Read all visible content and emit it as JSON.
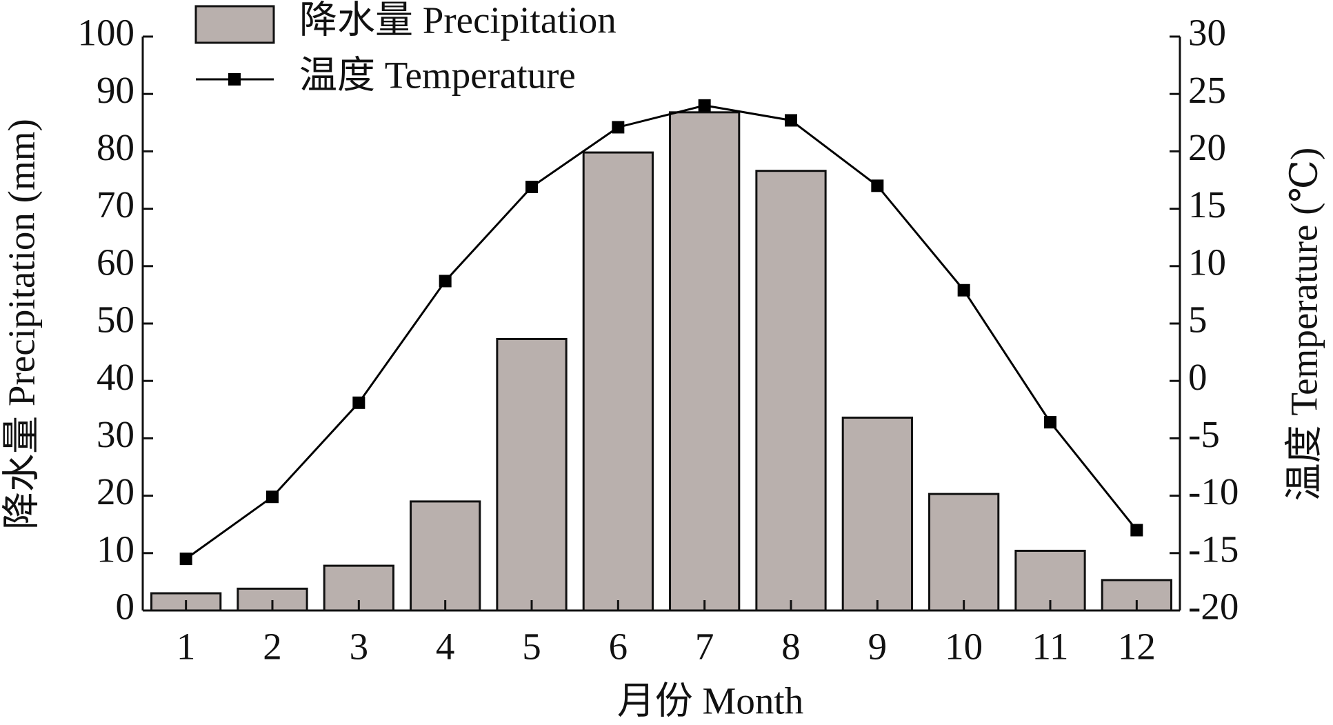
{
  "chart_data": {
    "type": "bar-line",
    "x_label": "月份 Month",
    "y_label": "降水量 Precipitation (mm)",
    "y2_label": "温度 Temperature (℃)",
    "categories": [
      "1",
      "2",
      "3",
      "4",
      "5",
      "6",
      "7",
      "8",
      "9",
      "10",
      "11",
      "12"
    ],
    "series": [
      {
        "name": "降水量 Precipitation",
        "type": "bar",
        "color": "#b9b0ad",
        "axis": "y",
        "values": [
          3.0,
          3.8,
          7.8,
          19.0,
          47.3,
          79.8,
          86.8,
          76.6,
          33.6,
          20.3,
          10.4,
          5.3
        ]
      },
      {
        "name": "温度 Temperature",
        "type": "line",
        "color": "#000000",
        "axis": "y2",
        "values": [
          -15.5,
          -10.1,
          -1.9,
          8.7,
          16.9,
          22.1,
          24.0,
          22.7,
          17.0,
          7.9,
          -3.6,
          -13.0
        ]
      }
    ],
    "ylim": [
      0,
      100
    ],
    "yticks": [
      0,
      10,
      20,
      30,
      40,
      50,
      60,
      70,
      80,
      90,
      100
    ],
    "y2lim": [
      -20,
      30
    ],
    "y2ticks": [
      -20,
      -15,
      -10,
      -5,
      0,
      5,
      10,
      15,
      20,
      25,
      30
    ],
    "grid": false,
    "legend": "top-left"
  }
}
